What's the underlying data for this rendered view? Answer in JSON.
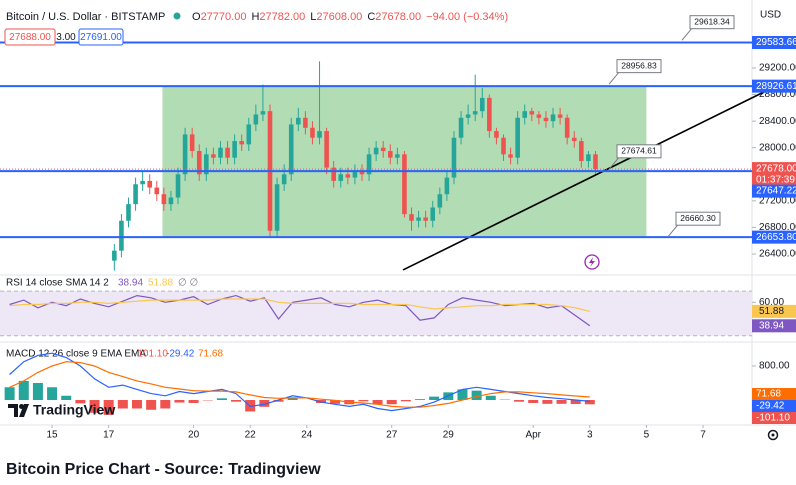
{
  "header": {
    "symbol": "Bitcoin / U.S. Dollar · BITSTAMP",
    "ohlc": [
      {
        "key": "O",
        "value": 27770,
        "label": "27770.00"
      },
      {
        "key": "H",
        "value": 27782,
        "label": "27782.00"
      },
      {
        "key": "L",
        "value": 27608,
        "label": "27608.00"
      },
      {
        "key": "C",
        "value": 27678,
        "label": "27678.00"
      }
    ],
    "change": "−94.00 (−0.34%)",
    "sell": "27688.00",
    "spread": "3.00",
    "buy": "27691.00",
    "currency": "USD"
  },
  "chart_data": [
    {
      "type": "candlestick",
      "xlim": [
        13.16,
        39.73
      ],
      "ylim": [
        26129,
        30148
      ],
      "yticks": [
        {
          "value": 26400,
          "label": "26400.00"
        },
        {
          "value": 26800,
          "label": "26800.00"
        },
        {
          "value": 27200,
          "label": "27200.00"
        },
        {
          "value": 28000,
          "label": "28000.00"
        },
        {
          "value": 28400,
          "label": "28400.00"
        },
        {
          "value": 28800,
          "label": "28800.00"
        },
        {
          "value": 29200,
          "label": "29200.00"
        }
      ],
      "up_color": "#26a69a",
      "down_color": "#ef5350",
      "x": [
        17.2,
        17.45,
        17.7,
        17.95,
        18.2,
        18.45,
        18.7,
        18.95,
        19.2,
        19.45,
        19.7,
        19.95,
        20.2,
        20.45,
        20.7,
        20.95,
        21.2,
        21.45,
        21.7,
        21.95,
        22.2,
        22.45,
        22.7,
        22.95,
        23.2,
        23.45,
        23.7,
        23.95,
        24.2,
        24.45,
        24.7,
        24.95,
        25.2,
        25.45,
        25.7,
        25.95,
        26.2,
        26.45,
        26.7,
        26.95,
        27.2,
        27.45,
        27.7,
        27.95,
        28.2,
        28.45,
        28.7,
        28.95,
        29.2,
        29.45,
        29.7,
        29.95,
        30.2,
        30.45,
        30.7,
        30.95,
        31.2,
        31.45,
        31.7,
        31.95,
        32.2,
        32.45,
        32.7,
        32.95,
        33.2,
        33.45,
        33.7,
        33.95,
        34.2
      ],
      "open": [
        26300,
        26450,
        26900,
        27150,
        27450,
        27500,
        27400,
        27300,
        27150,
        27250,
        27600,
        28200,
        27950,
        27600,
        27900,
        27850,
        28000,
        27850,
        28100,
        28050,
        28350,
        28500,
        28550,
        26750,
        27450,
        27600,
        28350,
        28450,
        28300,
        28150,
        28250,
        27700,
        27500,
        27600,
        27550,
        27650,
        27600,
        27900,
        28000,
        27950,
        27850,
        27900,
        27000,
        26900,
        26950,
        26900,
        27100,
        27300,
        27550,
        28150,
        28450,
        28500,
        28550,
        28750,
        28250,
        28150,
        27900,
        27850,
        28450,
        28550,
        28500,
        28450,
        28400,
        28500,
        28450,
        28150,
        28100,
        27800,
        27900
      ],
      "high": [
        26550,
        27000,
        27250,
        27550,
        27650,
        27600,
        27500,
        27400,
        27350,
        27700,
        28300,
        28300,
        28050,
        28000,
        28000,
        28100,
        28100,
        28200,
        28200,
        28450,
        28650,
        28950,
        28650,
        27550,
        27750,
        28450,
        28600,
        28550,
        28400,
        29300,
        28300,
        27800,
        27700,
        27700,
        27750,
        27750,
        28000,
        28100,
        28100,
        28050,
        28000,
        27950,
        27100,
        27050,
        27050,
        27200,
        27400,
        27650,
        28250,
        28550,
        28650,
        29100,
        28900,
        28800,
        28300,
        28200,
        28000,
        28550,
        28650,
        28600,
        28550,
        28550,
        28600,
        28600,
        28500,
        28250,
        28150,
        27950,
        27950
      ],
      "low": [
        26150,
        26350,
        26800,
        27050,
        27350,
        27300,
        27200,
        27050,
        27050,
        27150,
        27500,
        27850,
        27500,
        27500,
        27750,
        27750,
        27750,
        27750,
        27950,
        27950,
        28250,
        28400,
        26650,
        26650,
        27350,
        27500,
        28250,
        28200,
        28050,
        28050,
        27600,
        27400,
        27400,
        27450,
        27450,
        27500,
        27500,
        27800,
        27850,
        27750,
        27750,
        26950,
        26750,
        26800,
        26800,
        26800,
        27000,
        27200,
        27450,
        28050,
        28350,
        28400,
        28450,
        28150,
        28050,
        27800,
        27750,
        27750,
        28350,
        28400,
        28350,
        28300,
        28300,
        28350,
        28050,
        28000,
        27700,
        27700,
        27600
      ],
      "close": [
        26450,
        26900,
        27150,
        27450,
        27500,
        27400,
        27300,
        27150,
        27250,
        27600,
        28200,
        27950,
        27600,
        27900,
        27850,
        28000,
        27850,
        28100,
        28050,
        28350,
        28500,
        28550,
        26750,
        27450,
        27600,
        28350,
        28450,
        28300,
        28150,
        28250,
        27700,
        27500,
        27600,
        27550,
        27650,
        27600,
        27900,
        28000,
        27950,
        27850,
        27900,
        27000,
        26900,
        26950,
        26900,
        27100,
        27300,
        27550,
        28150,
        28450,
        28500,
        28550,
        28750,
        28250,
        28150,
        27900,
        27850,
        28450,
        28550,
        28500,
        28450,
        28400,
        28500,
        28450,
        28150,
        28100,
        27800,
        27900,
        27678
      ],
      "last_price": {
        "value": 27678,
        "label": "27678.00"
      },
      "countdown": "01:37:39",
      "levels": [
        {
          "value": 29583.66,
          "label": "29583.66",
          "callout": {
            "value": 29618.34,
            "label": "29618.34"
          }
        },
        {
          "value": 28926.61,
          "label": "28926.61",
          "callout": {
            "value": 28956.83,
            "label": "28956.83"
          }
        },
        {
          "value": 27647.22,
          "label": "27647.22",
          "callout": {
            "value": 27674.61,
            "label": "27674.61"
          }
        },
        {
          "value": 26653.8,
          "label": "26653.80",
          "callout": {
            "value": 26660.3,
            "label": "26660.30"
          }
        }
      ],
      "level_color": "#2962ff",
      "zone": {
        "x": [
          18.9,
          36.0
        ],
        "color": "#a5d6a7"
      },
      "trendline": {
        "x": [
          27.4,
          40.3
        ],
        "y": [
          26160,
          28870
        ],
        "color": "#000000"
      }
    },
    {
      "type": "line",
      "title": "RSI 14 close SMA 14 2",
      "xlim": [
        13.16,
        39.73
      ],
      "ylim": [
        28,
        80
      ],
      "yticks": [
        {
          "value": 60,
          "label": "60.00"
        }
      ],
      "bands": [
        70,
        30
      ],
      "band_color": "#ede7f6",
      "x": [
        13.5,
        14,
        14.5,
        15,
        15.5,
        16,
        16.5,
        17,
        17.5,
        18,
        18.5,
        19,
        19.5,
        20,
        20.5,
        21,
        21.5,
        22,
        22.5,
        23,
        23.5,
        24,
        24.5,
        25,
        25.5,
        26,
        26.5,
        27,
        27.5,
        28,
        28.5,
        29,
        29.5,
        30,
        30.5,
        31,
        31.5,
        32,
        32.5,
        33,
        33.5,
        34
      ],
      "series": [
        {
          "color": "#7e57c2",
          "values": [
            58,
            62,
            55,
            60,
            57,
            63,
            59,
            56,
            61,
            66,
            64,
            60,
            62,
            65,
            58,
            63,
            66,
            61,
            64,
            45,
            60,
            62,
            64,
            58,
            56,
            60,
            62,
            58,
            57,
            44,
            46,
            58,
            64,
            62,
            60,
            57,
            58,
            59,
            55,
            57,
            48,
            38.94
          ]
        },
        {
          "color": "#f9c74f",
          "values": [
            57,
            58,
            58,
            59,
            59,
            60,
            60,
            59,
            60,
            61,
            62,
            62,
            62,
            62,
            62,
            63,
            63,
            63,
            63,
            60,
            59,
            59,
            59,
            59,
            59,
            58,
            58,
            58,
            58,
            56,
            54,
            55,
            56,
            57,
            57,
            58,
            58,
            58,
            58,
            57,
            55,
            51.88
          ]
        }
      ],
      "legend_values": [
        38.94,
        51.88
      ],
      "extra": "∅ ∅"
    },
    {
      "type": "macd",
      "title": "MACD 12 26 close 9 EMA EMA",
      "xlim": [
        13.16,
        39.73
      ],
      "ylim": [
        -588,
        1294
      ],
      "yticks": [
        {
          "value": 800,
          "label": "800.00"
        }
      ],
      "xticks": [
        15,
        17,
        20,
        22,
        24,
        27,
        29,
        {
          "value": 32,
          "label": "Apr"
        },
        {
          "value": 34,
          "label": "3"
        },
        {
          "value": 36,
          "label": "5"
        },
        {
          "value": 38,
          "label": "7"
        }
      ],
      "x": [
        13.5,
        14,
        14.5,
        15,
        15.5,
        16,
        16.5,
        17,
        17.5,
        18,
        18.5,
        19,
        19.5,
        20,
        20.5,
        21,
        21.5,
        22,
        22.5,
        23,
        23.5,
        24,
        24.5,
        25,
        25.5,
        26,
        26.5,
        27,
        27.5,
        28,
        28.5,
        29,
        29.5,
        30,
        30.5,
        31,
        31.5,
        32,
        32.5,
        33,
        33.5,
        34
      ],
      "histogram": {
        "up_color": "#26a69a",
        "down_color": "#ef5350",
        "values": [
          300,
          450,
          400,
          300,
          100,
          -80,
          -300,
          -350,
          -200,
          -200,
          -230,
          -200,
          -60,
          -70,
          -10,
          40,
          -40,
          -270,
          -160,
          -40,
          50,
          0,
          -70,
          -90,
          -100,
          -30,
          -100,
          -100,
          -30,
          20,
          80,
          180,
          250,
          220,
          100,
          10,
          -40,
          -70,
          -90,
          -90,
          -95,
          -101.1
        ]
      },
      "series": [
        {
          "color": "#2962ff",
          "values": [
            600,
            900,
            1050,
            1100,
            1000,
            800,
            500,
            300,
            350,
            250,
            150,
            100,
            200,
            150,
            200,
            250,
            150,
            -150,
            -100,
            0,
            100,
            50,
            -50,
            -100,
            -150,
            -100,
            -200,
            -250,
            -200,
            -150,
            -50,
            100,
            250,
            300,
            250,
            200,
            150,
            100,
            60,
            30,
            0,
            -29.42
          ]
        },
        {
          "color": "#ff6d00",
          "values": [
            300,
            450,
            650,
            800,
            900,
            880,
            800,
            650,
            550,
            450,
            380,
            300,
            260,
            220,
            210,
            210,
            190,
            120,
            60,
            40,
            50,
            50,
            20,
            -10,
            -50,
            -70,
            -100,
            -150,
            -170,
            -170,
            -130,
            -80,
            0,
            80,
            150,
            190,
            190,
            170,
            150,
            120,
            95,
            71.68
          ]
        }
      ],
      "legend_values": [
        {
          "value": -101.1,
          "label": "-101.10"
        },
        {
          "value": -29.42,
          "label": "-29.42"
        },
        {
          "value": 71.68,
          "label": "71.68"
        }
      ]
    }
  ],
  "brand": "TradingView",
  "caption": "Bitcoin Price Chart - Source: Tradingview"
}
